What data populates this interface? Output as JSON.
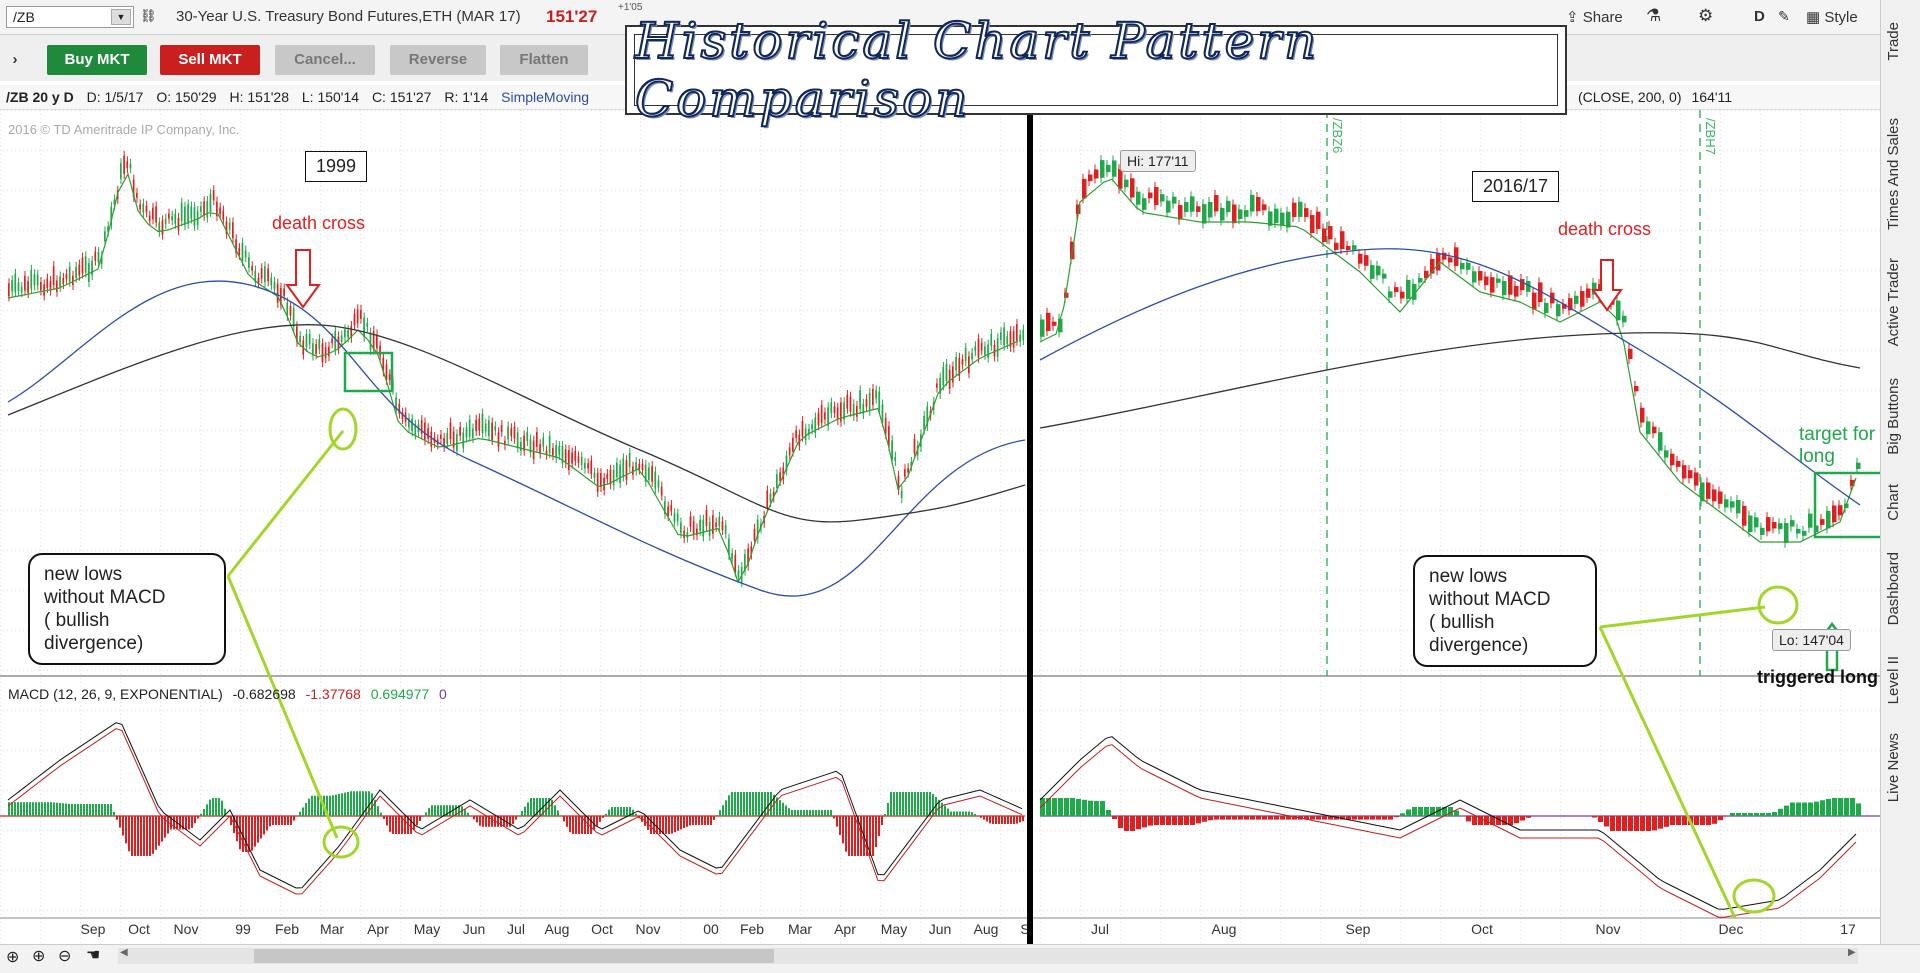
{
  "toolbar": {
    "symbol": "/ZB",
    "description": "30-Year U.S. Treasury Bond Futures,ETH (MAR 17)",
    "last_price": "151'27",
    "net_change": "+1'05",
    "share": "Share",
    "period": "D",
    "style": "Style"
  },
  "orders": {
    "buy": "Buy MKT",
    "sell": "Sell MKT",
    "cancel": "Cancel...",
    "reverse": "Reverse",
    "flatten": "Flatten"
  },
  "info": {
    "chart_label": "/ZB 20 y D",
    "date": "D: 1/5/17",
    "open": "O: 150'29",
    "high": "H: 151'28",
    "low": "L: 150'14",
    "close": "C: 151'27",
    "range": "R: 1'14",
    "study": "SimpleMoving",
    "study2": "(CLOSE, 200, 0)",
    "study2_value": "164'11"
  },
  "title": "Historical Chart Pattern Comparison",
  "copyright": "2016 © TD Ameritrade IP Company, Inc.",
  "left_panel": {
    "year_label": "1999",
    "death_cross": "death cross",
    "note": [
      "new lows",
      "without MACD",
      "( bullish",
      "divergence)"
    ],
    "x_labels": [
      "Sep",
      "Oct",
      "Nov",
      "99",
      "Feb",
      "Mar",
      "Apr",
      "May",
      "Jun",
      "Jul",
      "Aug",
      "Oct",
      "Nov",
      "00",
      "Feb",
      "Mar",
      "Apr",
      "May",
      "Jun",
      "Aug",
      "S"
    ]
  },
  "right_panel": {
    "year_label": "2016/17",
    "death_cross": "death cross",
    "hi_label": "Hi: 177'11",
    "lo_label": "Lo: 147'04",
    "expiry1": "/ZBZ6",
    "expiry2": "/ZBH7",
    "target": [
      "target for",
      "long"
    ],
    "triggered": "triggered long",
    "note": [
      "new lows",
      "without MACD",
      "( bullish",
      "divergence)"
    ],
    "x_labels": [
      "Jul",
      "Aug",
      "Sep",
      "Oct",
      "Nov",
      "Dec",
      "17"
    ]
  },
  "macd": {
    "label": "MACD (12, 26, 9, EXPONENTIAL)",
    "value": "-0.682698",
    "avg": "-1.37768",
    "diff": "0.694977",
    "zero": "0"
  },
  "side_tabs": [
    "Trade",
    "Times And Sales",
    "Active Trader",
    "Big Buttons",
    "Chart",
    "Dashboard",
    "Level II",
    "Live News"
  ],
  "colors": {
    "up": "#1fa94a",
    "down": "#e02020",
    "ma_fast": "#2f9e2f",
    "ma_mid": "#2b4ea8",
    "ma_slow": "#333333",
    "annotation": "#a3d62a"
  }
}
